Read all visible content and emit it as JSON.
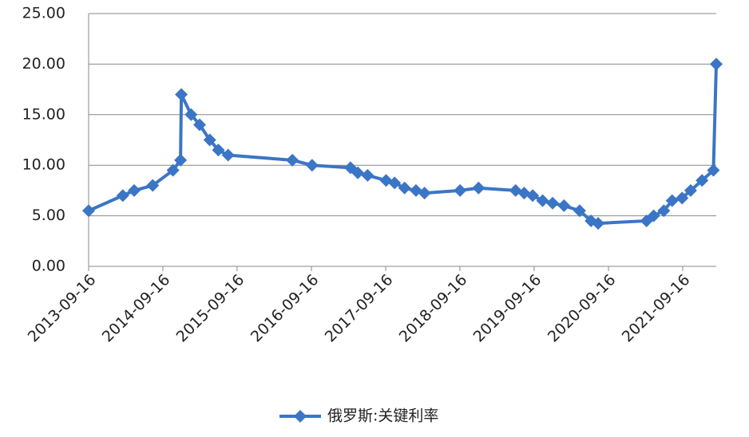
{
  "chart_data": {
    "type": "line",
    "x": [
      "2013-09-16",
      "2014-03-03",
      "2014-04-28",
      "2014-07-28",
      "2014-11-05",
      "2014-12-12",
      "2014-12-16",
      "2015-02-02",
      "2015-03-16",
      "2015-05-05",
      "2015-06-16",
      "2015-08-03",
      "2016-06-14",
      "2016-09-19",
      "2017-03-27",
      "2017-05-02",
      "2017-06-19",
      "2017-09-18",
      "2017-10-30",
      "2017-12-18",
      "2018-02-12",
      "2018-03-26",
      "2018-09-17",
      "2018-12-17",
      "2019-06-17",
      "2019-07-29",
      "2019-09-09",
      "2019-10-28",
      "2019-12-16",
      "2020-02-10",
      "2020-04-27",
      "2020-06-22",
      "2020-07-27",
      "2021-03-22",
      "2021-04-26",
      "2021-06-15",
      "2021-07-26",
      "2021-09-13",
      "2021-10-25",
      "2021-12-20",
      "2022-02-14",
      "2022-02-28"
    ],
    "series": [
      {
        "name": "俄罗斯:关键利率",
        "color": "#3b75c5",
        "values": [
          5.5,
          7.0,
          7.5,
          8.0,
          9.5,
          10.5,
          17.0,
          15.0,
          14.0,
          12.5,
          11.5,
          11.0,
          10.5,
          10.0,
          9.75,
          9.25,
          9.0,
          8.5,
          8.25,
          7.75,
          7.5,
          7.25,
          7.5,
          7.75,
          7.5,
          7.25,
          7.0,
          6.5,
          6.25,
          6.0,
          5.5,
          4.5,
          4.25,
          4.5,
          5.0,
          5.5,
          6.5,
          6.75,
          7.5,
          8.5,
          9.5,
          20.0
        ]
      }
    ],
    "xlim": [
      "2013-09-16",
      "2022-02-28"
    ],
    "xticks": [
      "2013-09-16",
      "2014-09-16",
      "2015-09-16",
      "2016-09-16",
      "2017-09-16",
      "2018-09-16",
      "2019-09-16",
      "2020-09-16",
      "2021-09-16"
    ],
    "ylim": [
      0,
      25
    ],
    "yticks": [
      {
        "value": 0,
        "label": "0.00"
      },
      {
        "value": 5,
        "label": "5.00"
      },
      {
        "value": 10,
        "label": "10.00"
      },
      {
        "value": 15,
        "label": "15.00"
      },
      {
        "value": 20,
        "label": "20.00"
      },
      {
        "value": 25,
        "label": "25.00"
      }
    ],
    "grid": true,
    "legend": "bottom"
  }
}
